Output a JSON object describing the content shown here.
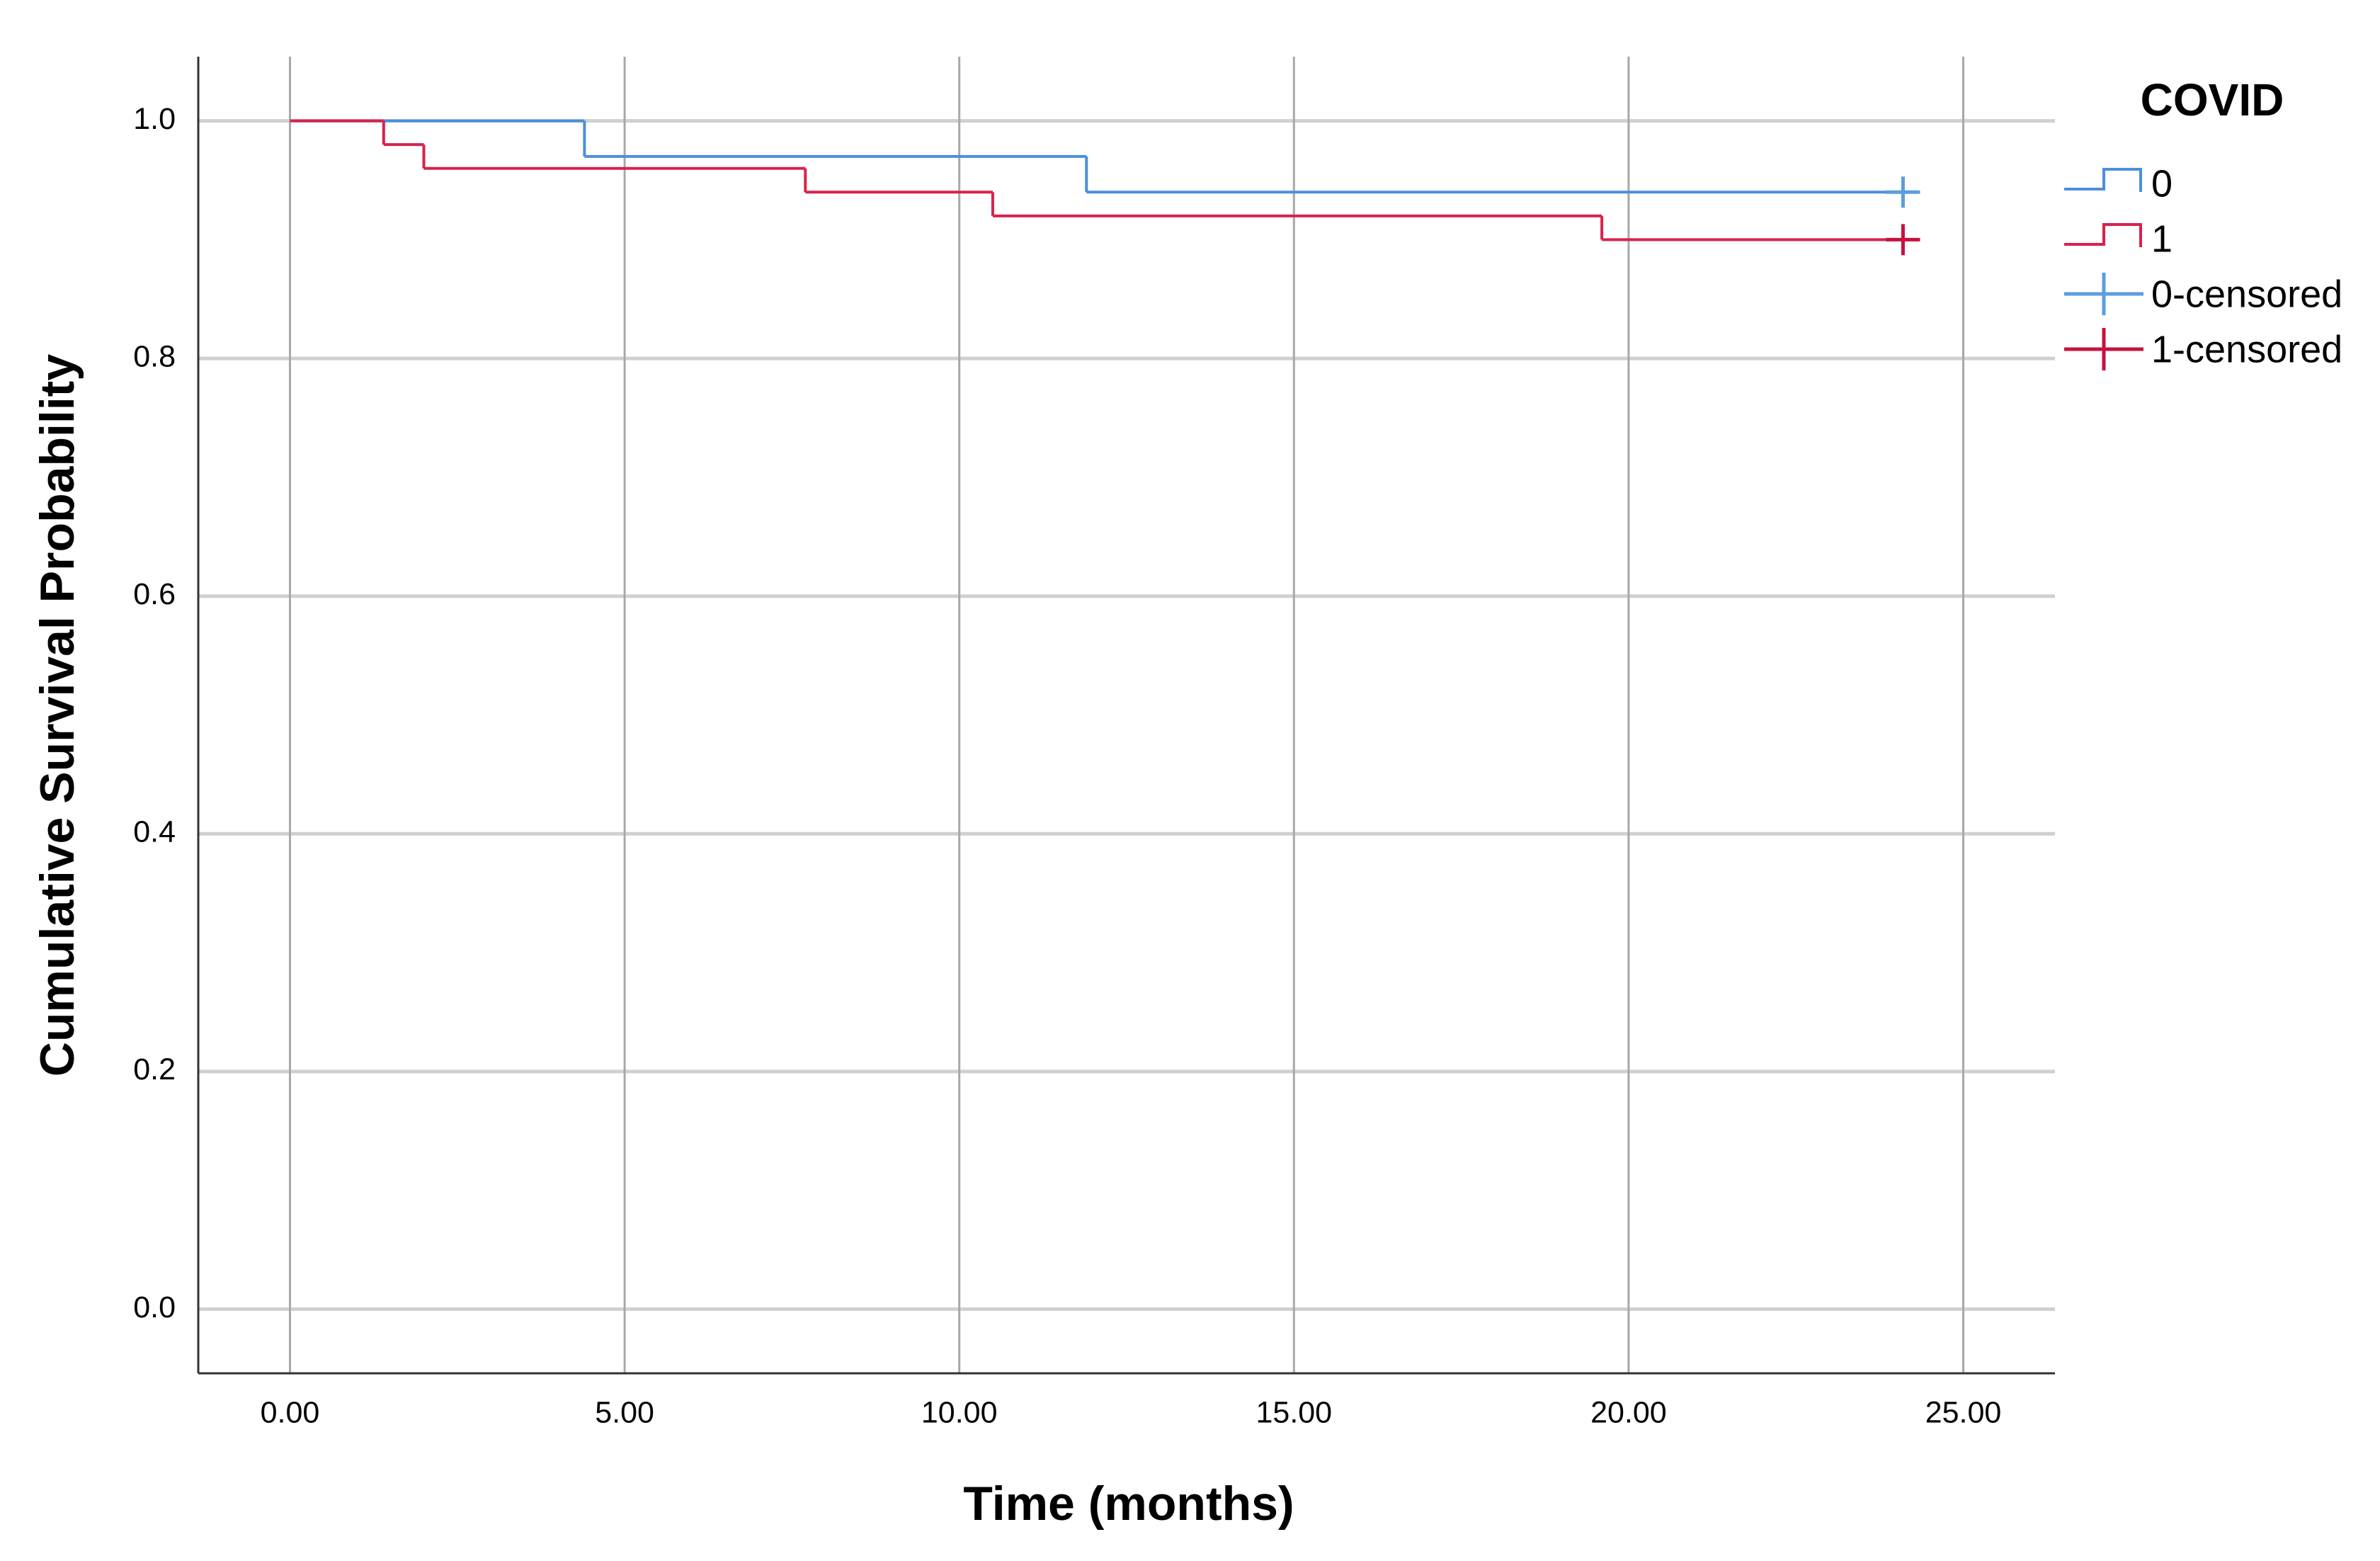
{
  "chart_data": {
    "type": "line",
    "x_label": "Time (months)",
    "y_label": "Cumulative Survival Probability",
    "legend_title": "COVID",
    "legend": "right",
    "grid": true,
    "xlim": [
      -1.37,
      26.37
    ],
    "ylim": [
      -0.054,
      1.054
    ],
    "xticks": [
      {
        "value": 0,
        "label": "0.00"
      },
      {
        "value": 5,
        "label": "5.00"
      },
      {
        "value": 10,
        "label": "10.00"
      },
      {
        "value": 15,
        "label": "15.00"
      },
      {
        "value": 20,
        "label": "20.00"
      },
      {
        "value": 25,
        "label": "25.00"
      }
    ],
    "yticks": [
      {
        "value": 0,
        "label": "0.0"
      },
      0.2,
      0.4,
      0.6,
      0.8,
      {
        "value": 1,
        "label": "1.0"
      }
    ],
    "series": [
      {
        "name": "0",
        "color": "#4a8fdc",
        "step": true,
        "x": [
          0,
          4.4,
          11.9,
          24.1
        ],
        "values": [
          1.0,
          0.97,
          0.94,
          0.94
        ]
      },
      {
        "name": "1",
        "color": "#d8224c",
        "step": true,
        "x": [
          0,
          1.4,
          2.0,
          7.7,
          10.5,
          19.6,
          24.1
        ],
        "values": [
          1.0,
          0.98,
          0.96,
          0.94,
          0.92,
          0.9,
          0.9
        ]
      },
      {
        "name": "0-censored",
        "color": "#5a9ee0",
        "marker": "+",
        "x": [
          24.1
        ],
        "values": [
          0.94
        ]
      },
      {
        "name": "1-censored",
        "color": "#c8103e",
        "marker": "+",
        "x": [
          24.1
        ],
        "values": [
          0.9
        ]
      }
    ]
  }
}
